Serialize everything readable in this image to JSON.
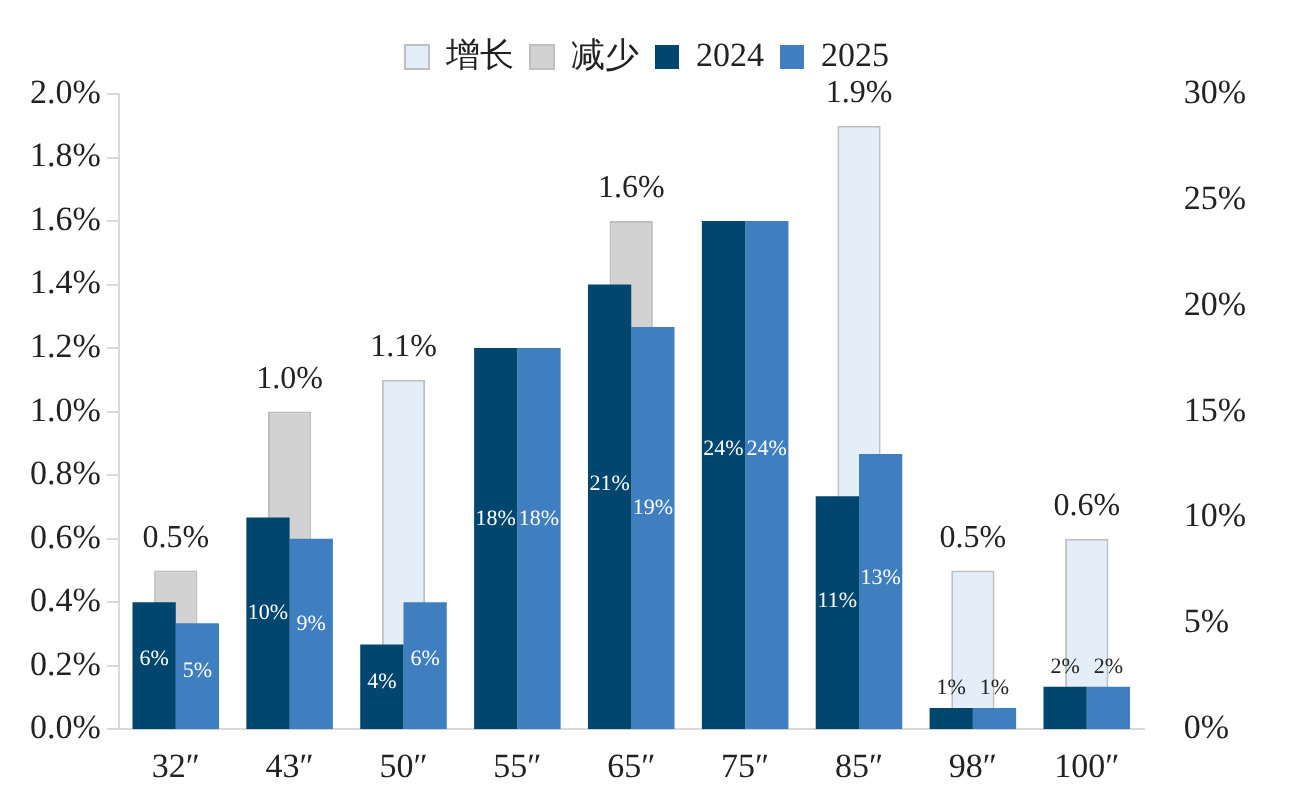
{
  "chart_data": {
    "type": "bar",
    "categories": [
      "32″",
      "43″",
      "50″",
      "55″",
      "65″",
      "75″",
      "85″",
      "98″",
      "100″"
    ],
    "series": [
      {
        "name": "增长",
        "color": "#e3eef8",
        "values": [
          null,
          null,
          1.1,
          null,
          null,
          null,
          1.9,
          0.5,
          0.6
        ],
        "value_labels": [
          null,
          null,
          "1.1%",
          null,
          null,
          null,
          "1.9%",
          "0.5%",
          "0.6%"
        ]
      },
      {
        "name": "减少",
        "color": "#d2d2d2",
        "values": [
          0.5,
          1.0,
          null,
          null,
          1.6,
          null,
          null,
          null,
          null
        ],
        "value_labels": [
          "0.5%",
          "1.0%",
          null,
          null,
          "1.6%",
          null,
          null,
          null,
          null
        ]
      },
      {
        "name": "2024",
        "color": "#00466e",
        "axis": "y2",
        "values": [
          6,
          10,
          4,
          18,
          21,
          24,
          11,
          1,
          2
        ],
        "value_labels": [
          "6%",
          "10%",
          "4%",
          "18%",
          "21%",
          "24%",
          "11%",
          "1%",
          "2%"
        ]
      },
      {
        "name": "2025",
        "color": "#3f7fbf",
        "axis": "y2",
        "values": [
          5,
          9,
          6,
          18,
          19,
          24,
          13,
          1,
          2
        ],
        "value_labels": [
          "5%",
          "9%",
          "6%",
          "18%",
          "19%",
          "24%",
          "13%",
          "1%",
          "2%"
        ]
      }
    ],
    "ylim": [
      0,
      2.0
    ],
    "yticks": [
      {
        "value": 0,
        "label": "0.0%"
      },
      {
        "value": 0.2,
        "label": "0.2%"
      },
      {
        "value": 0.4,
        "label": "0.4%"
      },
      {
        "value": 0.6,
        "label": "0.6%"
      },
      {
        "value": 0.8,
        "label": "0.8%"
      },
      {
        "value": 1.0,
        "label": "1.0%"
      },
      {
        "value": 1.2,
        "label": "1.2%"
      },
      {
        "value": 1.4,
        "label": "1.4%"
      },
      {
        "value": 1.6,
        "label": "1.6%"
      },
      {
        "value": 1.8,
        "label": "1.8%"
      },
      {
        "value": 2.0,
        "label": "2.0%"
      }
    ],
    "y2lim": [
      0,
      30
    ],
    "y2ticks": [
      {
        "value": 0,
        "label": "0%"
      },
      {
        "value": 5,
        "label": "5%"
      },
      {
        "value": 10,
        "label": "10%"
      },
      {
        "value": 15,
        "label": "15%"
      },
      {
        "value": 20,
        "label": "20%"
      },
      {
        "value": 25,
        "label": "25%"
      },
      {
        "value": 30,
        "label": "30%"
      }
    ],
    "grid": false,
    "legend": "top"
  }
}
